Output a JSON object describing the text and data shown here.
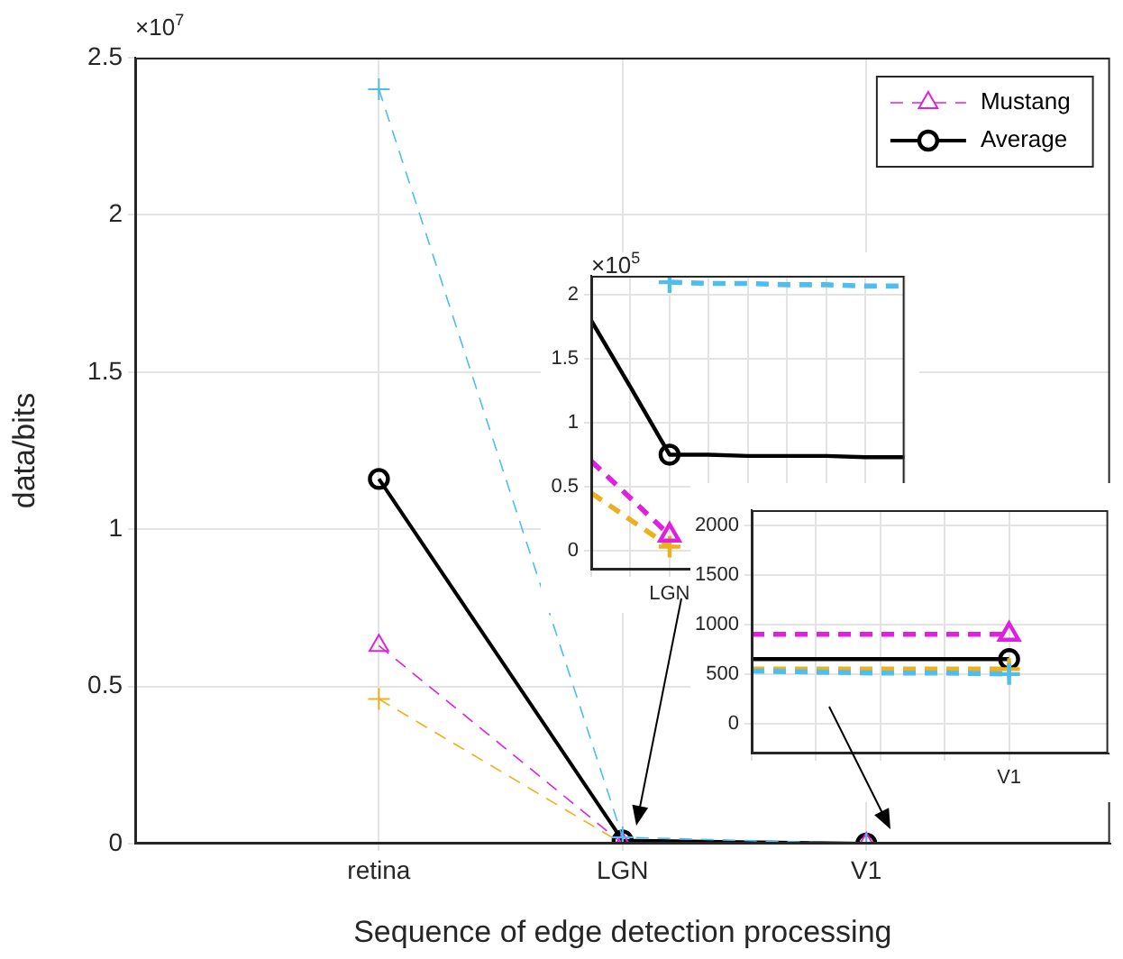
{
  "chart_data": [
    {
      "type": "line",
      "xlabel": "Sequence of edge detection processing",
      "ylabel": "data/bits",
      "annotations": [
        "×10$^{7}$"
      ],
      "categories": [
        "retina",
        "LGN",
        "V1"
      ],
      "ylim": [
        0,
        2.5
      ],
      "yticks": [
        0,
        0.5,
        1,
        1.5,
        2,
        2.5
      ],
      "grid": true,
      "legend": "top right",
      "series": [
        {
          "color": "#4dbeee",
          "marker": "cross",
          "line_style": "dashed",
          "values": [
            2.4,
            0.02,
            0
          ]
        },
        {
          "name": "Mustang",
          "color": "#e020e0",
          "marker": "triangle",
          "line_style": "dashed",
          "values": [
            0.63,
            0,
            0
          ]
        },
        {
          "color": "#edb120",
          "marker": "cross",
          "line_style": "dashed",
          "values": [
            0.46,
            0,
            0
          ]
        },
        {
          "name": "Average",
          "color": "#000000",
          "marker": "circle",
          "line_style": "solid",
          "values": [
            1.16,
            0.01,
            0
          ]
        }
      ]
    },
    {
      "type": "line",
      "annotations": [
        "×10$^{5}$"
      ],
      "categories": [
        null,
        null,
        "LGN",
        null,
        null,
        null,
        null,
        null,
        null
      ],
      "ylim": [
        -0.15,
        2.15
      ],
      "yticks": [
        0,
        0.5,
        1,
        1.5,
        2
      ],
      "grid": true,
      "series": [
        {
          "color": "#4dbeee",
          "marker": "none",
          "line_style": "dashed",
          "values": [
            null,
            null,
            2.1,
            2.09,
            2.09,
            2.08,
            2.08,
            2.07,
            2.07
          ]
        },
        {
          "color": "#e020e0",
          "marker": "none",
          "line_style": "dashed",
          "values": [
            0.7,
            0.41,
            0.12,
            null,
            null,
            null,
            null,
            null,
            null
          ]
        },
        {
          "color": "#edb120",
          "marker": "none",
          "line_style": "dashed",
          "values": [
            0.45,
            0.24,
            0.03,
            null,
            null,
            null,
            null,
            null,
            null
          ]
        },
        {
          "color": "#000000",
          "marker": "none",
          "line_style": "solid",
          "values": [
            1.8,
            1.28,
            0.75,
            0.75,
            0.74,
            0.74,
            0.74,
            0.73,
            0.73
          ]
        },
        {
          "type": "scatter",
          "color": "#4dbeee",
          "marker": "cross",
          "values": [
            null,
            null,
            2.1,
            null,
            null,
            null,
            null,
            null,
            null
          ]
        },
        {
          "type": "scatter",
          "color": "#e020e0",
          "marker": "triangle",
          "values": [
            null,
            null,
            0.12,
            null,
            null,
            null,
            null,
            null,
            null
          ]
        },
        {
          "type": "scatter",
          "color": "#edb120",
          "marker": "cross",
          "values": [
            null,
            null,
            0.03,
            null,
            null,
            null,
            null,
            null,
            null
          ]
        },
        {
          "type": "scatter",
          "color": "#000000",
          "marker": "circle",
          "values": [
            null,
            null,
            0.75,
            null,
            null,
            null,
            null,
            null,
            null
          ]
        }
      ]
    },
    {
      "type": "line",
      "categories": [
        null,
        null,
        null,
        null,
        "V1"
      ],
      "ylim": [
        -300,
        2150
      ],
      "yticks": [
        0,
        500,
        1000,
        1500,
        2000
      ],
      "grid": true,
      "series": [
        {
          "color": "#4dbeee",
          "marker": "none",
          "line_style": "dashed",
          "values": [
            530,
            520,
            510,
            510,
            500
          ]
        },
        {
          "color": "#e020e0",
          "marker": "none",
          "line_style": "dashed",
          "values": [
            900,
            900,
            900,
            900,
            900
          ]
        },
        {
          "color": "#edb120",
          "marker": "none",
          "line_style": "dashed",
          "values": [
            550,
            550,
            550,
            550,
            550
          ]
        },
        {
          "color": "#000000",
          "marker": "none",
          "line_style": "solid",
          "values": [
            650,
            650,
            650,
            650,
            650
          ]
        },
        {
          "type": "scatter",
          "color": "#4dbeee",
          "marker": "cross",
          "values": [
            null,
            null,
            null,
            null,
            500
          ]
        },
        {
          "type": "scatter",
          "color": "#e020e0",
          "marker": "triangle",
          "values": [
            null,
            null,
            null,
            null,
            900
          ]
        },
        {
          "type": "scatter",
          "color": "#edb120",
          "marker": "cross",
          "values": [
            null,
            null,
            null,
            null,
            550
          ]
        },
        {
          "type": "scatter",
          "color": "#000000",
          "marker": "circle",
          "values": [
            null,
            null,
            null,
            null,
            650
          ]
        }
      ]
    }
  ]
}
